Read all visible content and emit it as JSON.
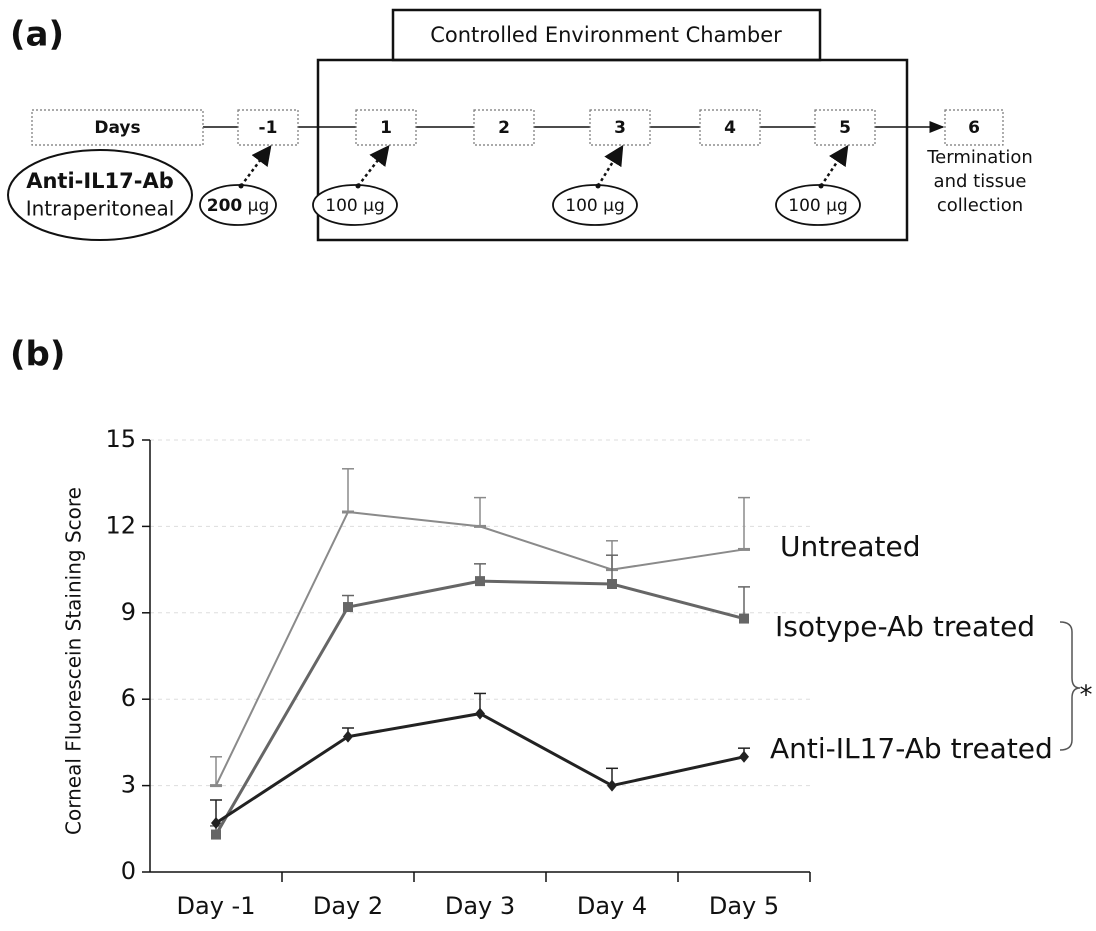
{
  "panel_a": {
    "label": "(a)",
    "chamber_title": "Controlled Environment Chamber",
    "days": [
      "Days",
      "-1",
      "1",
      "2",
      "3",
      "4",
      "5",
      "6"
    ],
    "agent": {
      "name": "Anti-IL17-Ab",
      "route": "Intraperitoneal"
    },
    "doses": [
      {
        "amount": "200",
        "unit": "µg"
      },
      {
        "amount": "100",
        "unit": "µg"
      },
      {
        "amount": "100",
        "unit": "µg"
      },
      {
        "amount": "100",
        "unit": "µg"
      }
    ],
    "termination": [
      "Termination",
      "and tissue",
      "collection"
    ]
  },
  "chart_data": {
    "type": "line",
    "panel_label": "(b)",
    "y_label": "Corneal Fluorescein Staining Score",
    "categories": [
      "Day -1",
      "Day 2",
      "Day 3",
      "Day 4",
      "Day 5"
    ],
    "ylim": [
      0,
      15
    ],
    "yticks": [
      0,
      3,
      6,
      9,
      12,
      15
    ],
    "grid": true,
    "series": [
      {
        "name": "Untreated",
        "color": "#8a8a8a",
        "marker": "dash",
        "values": [
          3.0,
          12.5,
          12.0,
          10.5,
          11.2
        ],
        "errors": [
          1.0,
          1.5,
          1.0,
          1.0,
          1.8
        ]
      },
      {
        "name": "Isotype-Ab treated",
        "color": "#666666",
        "marker": "square",
        "values": [
          1.3,
          9.2,
          10.1,
          10.0,
          8.8
        ],
        "errors": [
          0.3,
          0.4,
          0.6,
          1.0,
          1.1
        ]
      },
      {
        "name": "Anti-IL17-Ab treated",
        "color": "#222222",
        "marker": "diamond",
        "values": [
          1.7,
          4.7,
          5.5,
          3.0,
          4.0
        ],
        "errors": [
          0.8,
          0.3,
          0.7,
          0.6,
          0.3
        ]
      }
    ],
    "annotation": "*"
  }
}
